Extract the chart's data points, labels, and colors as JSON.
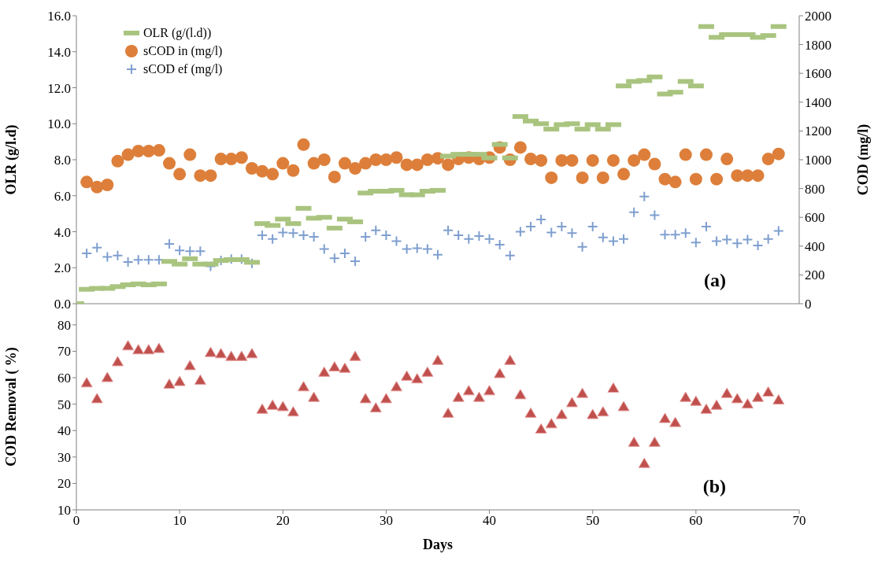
{
  "chart_data": [
    {
      "type": "scatter",
      "ylabel": "OLR (g/l.d)",
      "y2label": "COD (mg/l)",
      "annotations": [
        "(a)"
      ],
      "x": [
        0,
        1,
        2,
        3,
        4,
        5,
        6,
        7,
        8,
        9,
        10,
        11,
        12,
        13,
        14,
        15,
        16,
        17,
        18,
        19,
        20,
        21,
        22,
        23,
        24,
        25,
        26,
        27,
        28,
        29,
        30,
        31,
        32,
        33,
        34,
        35,
        36,
        37,
        38,
        39,
        40,
        41,
        42,
        43,
        44,
        45,
        46,
        47,
        48,
        49,
        50,
        51,
        52,
        53,
        54,
        55,
        56,
        57,
        58,
        59,
        60,
        61,
        62,
        63,
        64,
        65,
        66,
        67,
        68
      ],
      "series": [
        {
          "name": "OLR (g/(l.d))",
          "color": "#a9c47f",
          "marker": "square",
          "values": [
            0.0,
            0.8,
            0.85,
            0.85,
            0.95,
            1.05,
            1.1,
            1.05,
            1.1,
            2.35,
            2.2,
            2.5,
            2.2,
            2.2,
            2.4,
            2.45,
            2.45,
            2.3,
            4.45,
            4.35,
            4.7,
            4.45,
            5.3,
            4.75,
            4.8,
            4.2,
            4.7,
            4.55,
            6.15,
            6.25,
            6.25,
            6.3,
            6.05,
            6.05,
            6.25,
            6.3,
            8.2,
            8.3,
            8.3,
            8.3,
            8.1,
            8.85,
            8.1,
            10.4,
            10.15,
            10.0,
            9.7,
            9.95,
            10.0,
            9.7,
            9.95,
            9.7,
            9.95,
            12.1,
            12.35,
            12.4,
            12.6,
            11.65,
            11.75,
            12.35,
            12.1,
            15.4,
            14.8,
            14.95,
            14.95,
            14.95,
            14.8,
            14.9,
            15.4
          ]
        },
        {
          "name": "sCOD in (mg/l)",
          "color": "#dd7f3a",
          "marker": "circle",
          "axis": "y2",
          "values": [
            null,
            845,
            810,
            825,
            990,
            1035,
            1060,
            1060,
            1065,
            975,
            900,
            1035,
            890,
            890,
            1005,
            1005,
            1015,
            940,
            920,
            900,
            975,
            925,
            1105,
            975,
            1000,
            880,
            975,
            940,
            975,
            1000,
            1000,
            1015,
            965,
            965,
            1000,
            1010,
            965,
            1005,
            1015,
            1005,
            1015,
            1085,
            1000,
            1085,
            1005,
            995,
            875,
            995,
            995,
            875,
            995,
            875,
            995,
            900,
            995,
            1035,
            970,
            865,
            845,
            1035,
            865,
            1035,
            865,
            1005,
            890,
            890,
            890,
            1005,
            1040
          ]
        },
        {
          "name": "sCOD ef (mg/l)",
          "color": "#7f9fcf",
          "marker": "cross",
          "axis": "y2",
          "values": [
            null,
            350,
            390,
            325,
            335,
            290,
            305,
            305,
            305,
            415,
            370,
            365,
            365,
            260,
            300,
            310,
            310,
            280,
            475,
            450,
            495,
            490,
            475,
            465,
            380,
            315,
            350,
            295,
            465,
            510,
            475,
            435,
            380,
            385,
            380,
            340,
            510,
            475,
            450,
            470,
            450,
            410,
            335,
            500,
            535,
            585,
            495,
            535,
            490,
            395,
            535,
            460,
            435,
            450,
            635,
            745,
            615,
            480,
            480,
            490,
            425,
            535,
            435,
            445,
            420,
            445,
            405,
            450,
            505
          ]
        }
      ],
      "xlim": [
        0,
        70
      ],
      "xticks": [
        0,
        10,
        20,
        30,
        40,
        50,
        60,
        70
      ],
      "tick_labels": "y",
      "ylim": [
        0,
        16
      ],
      "yticks": [
        {
          "value": 0,
          "label": "0.0"
        },
        {
          "value": 2,
          "label": "2.0"
        },
        {
          "value": 4,
          "label": "4.0"
        },
        {
          "value": 6,
          "label": "6.0"
        },
        {
          "value": 8,
          "label": "8.0"
        },
        {
          "value": 10,
          "label": "10.0"
        },
        {
          "value": 12,
          "label": "12.0"
        },
        {
          "value": 14,
          "label": "14.0"
        },
        {
          "value": 16,
          "label": "16.0"
        }
      ],
      "y2lim": [
        0,
        2000
      ],
      "y2ticks": [
        0,
        200,
        400,
        600,
        800,
        1000,
        1200,
        1400,
        1600,
        1800,
        2000
      ],
      "legend": "top left",
      "grid": false
    },
    {
      "type": "scatter",
      "xlabel": "Days",
      "ylabel": "COD Removal  ( %)",
      "annotations": [
        "(b)"
      ],
      "x": [
        1,
        2,
        3,
        4,
        5,
        6,
        7,
        8,
        9,
        10,
        11,
        12,
        13,
        14,
        15,
        16,
        17,
        18,
        19,
        20,
        21,
        22,
        23,
        24,
        25,
        26,
        27,
        28,
        29,
        30,
        31,
        32,
        33,
        34,
        35,
        36,
        37,
        38,
        39,
        40,
        41,
        42,
        43,
        44,
        45,
        46,
        47,
        48,
        49,
        50,
        51,
        52,
        53,
        54,
        55,
        56,
        57,
        58,
        59,
        60,
        61,
        62,
        63,
        64,
        65,
        66,
        67,
        68
      ],
      "series": [
        {
          "color": "#c0504d",
          "marker": "triangle",
          "values": [
            58,
            52,
            60,
            66,
            72,
            70.5,
            70.5,
            71,
            57.5,
            58.5,
            64.5,
            59,
            69.5,
            69,
            68,
            68,
            69,
            48,
            49.5,
            49,
            47,
            56.5,
            52.5,
            62,
            64,
            63.5,
            68,
            52,
            48.5,
            52,
            56.5,
            60.5,
            59.5,
            62,
            66.5,
            46.5,
            52.5,
            55,
            52.5,
            55,
            61.5,
            66.5,
            53.5,
            46.5,
            40.5,
            42.5,
            46,
            50.5,
            54,
            46,
            47,
            56,
            49,
            35.5,
            27.5,
            35.5,
            44.5,
            43,
            52.5,
            51,
            48,
            49.5,
            54,
            52,
            50,
            52.5,
            54.5,
            51.5
          ]
        }
      ],
      "xlim": [
        0,
        70
      ],
      "xticks": [
        0,
        10,
        20,
        30,
        40,
        50,
        60,
        70
      ],
      "ylim": [
        10,
        88
      ],
      "yticks": [
        10,
        20,
        30,
        40,
        50,
        60,
        70,
        80
      ],
      "grid": false,
      "legend": false
    }
  ]
}
